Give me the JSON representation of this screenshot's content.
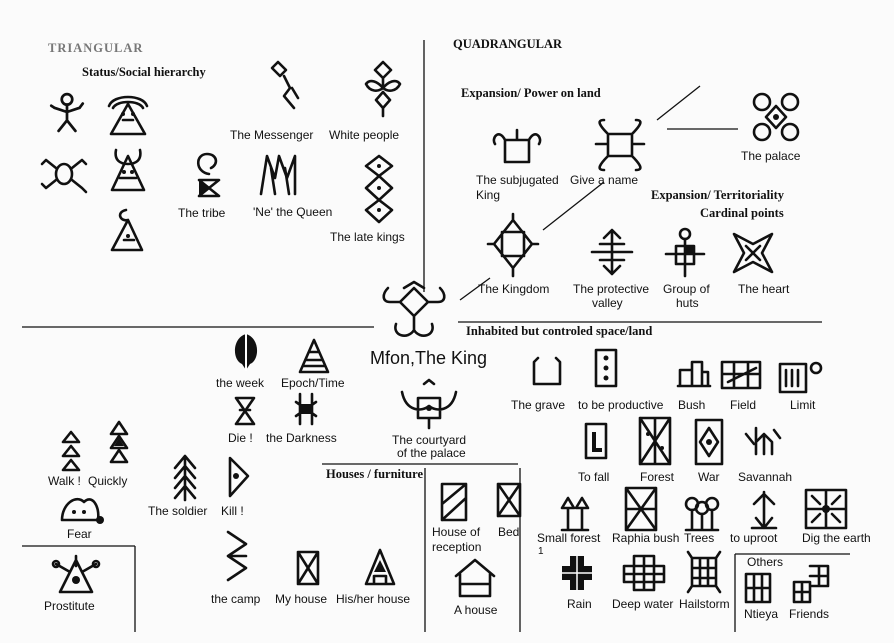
{
  "headings": {
    "triangular": "TRIANGULAR",
    "status": "Status/Social hierarchy",
    "quadrangular": "QUADRANGULAR",
    "expansion_power": "Expansion/ Power on land",
    "expansion_territoriality": "Expansion/ Territoriality",
    "cardinal_points": "Cardinal points",
    "inhabited": "Inhabited but controled space/land",
    "houses_furniture": "Houses / furniture",
    "others": "Others"
  },
  "king": "Mfon,The King",
  "labels": {
    "messenger": "The  Messenger",
    "white_people": "White people",
    "tribe": "The tribe",
    "ne_queen": "'Ne' the Queen",
    "late_kings": "The late kings",
    "subjugated_1": "The subjugated",
    "subjugated_2": "King",
    "give_name": "Give a name",
    "palace": "The palace",
    "kingdom": "The Kingdom",
    "protective_1": "The protective",
    "protective_2": "valley",
    "huts_1": "Group of",
    "huts_2": "huts",
    "heart": "The heart",
    "week": "the week",
    "epoch": "Epoch/Time",
    "die": "Die !",
    "darkness": "the Darkness",
    "courtyard_1": "The courtyard",
    "courtyard_2": "of the palace",
    "grave": "The grave",
    "productive": "to be productive",
    "bush": "Bush",
    "field": "Field",
    "limit": "Limit",
    "to_fall": "To fall",
    "forest": "Forest",
    "war": "War",
    "savannah": "Savannah",
    "walk": "Walk !",
    "quickly": "Quickly",
    "soldier": "The soldier",
    "kill": "Kill !",
    "fear": "Fear",
    "house_reception_1": "House of",
    "house_reception_2": "reception",
    "bed": "Bed",
    "small_forest": "Small forest",
    "raphia": "Raphia bush",
    "trees": "Trees",
    "uproot": "to uproot",
    "dig_earth": "Dig the earth",
    "note_1": "1",
    "prostitute": "Prostitute",
    "camp": "the camp",
    "my_house": "My house",
    "his_house": "His/her house",
    "a_house": "A house",
    "rain": "Rain",
    "deep_water": "Deep water",
    "hailstorm": "Hailstorm",
    "ntieya": "Ntieya",
    "friends": "Friends"
  }
}
